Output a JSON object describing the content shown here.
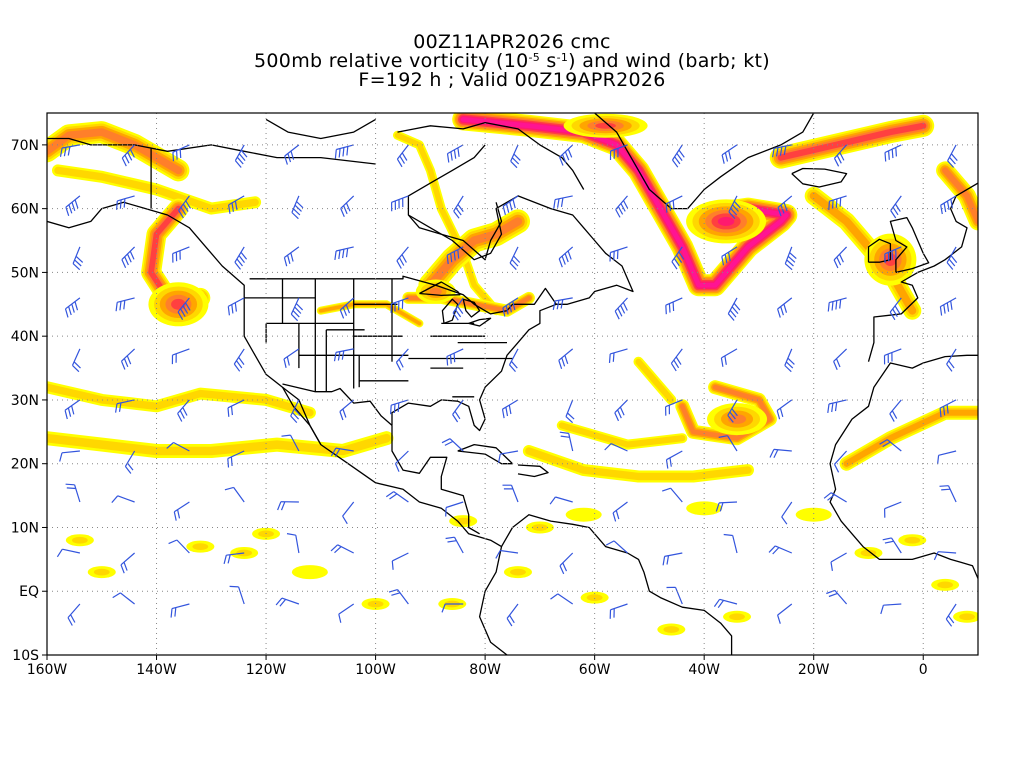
{
  "title": {
    "line1": "00Z11APR2026 cmc",
    "line2_prefix": "500mb relative vorticity (10",
    "line2_exp1": "-5",
    "line2_mid": " s",
    "line2_exp2": "-1",
    "line2_suffix": ") and wind (barb; kt)",
    "line3": "F=192 h ; Valid 00Z19APR2026"
  },
  "map": {
    "lon_range": [
      -160,
      10
    ],
    "lat_range": [
      -10,
      75
    ],
    "projection": "cylindrical-equidistant",
    "grid": "dotted",
    "lat_labels": [
      "70N",
      "60N",
      "50N",
      "40N",
      "30N",
      "20N",
      "10N",
      "EQ",
      "10S"
    ],
    "lat_values": [
      70,
      60,
      50,
      40,
      30,
      20,
      10,
      0,
      -10
    ],
    "lon_labels": [
      "160W",
      "140W",
      "120W",
      "100W",
      "80W",
      "60W",
      "40W",
      "20W",
      "0"
    ],
    "lon_values": [
      -160,
      -140,
      -120,
      -100,
      -80,
      -60,
      -40,
      -20,
      0
    ]
  },
  "colors": {
    "shade_levels": [
      "#ffff00",
      "#ffd700",
      "#ffa500",
      "#ff7f2a",
      "#ff4040",
      "#ff1a6e",
      "#ff1493"
    ],
    "barb": "#3355dd",
    "coast": "#000000",
    "grid": "#888888"
  }
}
